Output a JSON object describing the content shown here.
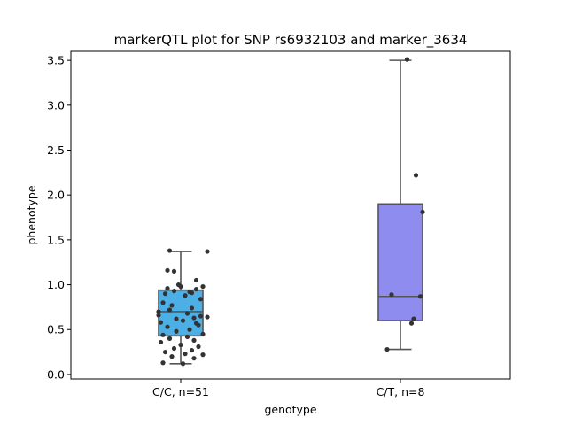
{
  "chart_data": {
    "type": "box",
    "title": "markerQTL plot for SNP rs6932103 and marker_3634",
    "xlabel": "genotype",
    "ylabel": "phenotype",
    "ylim": [
      -0.05,
      3.6
    ],
    "yticks": [
      "0.0",
      "0.5",
      "1.0",
      "1.5",
      "2.0",
      "2.5",
      "3.0",
      "3.5"
    ],
    "categories": [
      "C/C, n=51",
      "C/T, n=8"
    ],
    "boxes": [
      {
        "category": "C/C, n=51",
        "color": "#4cb0e6",
        "whisker_low": 0.12,
        "q1": 0.43,
        "median": 0.7,
        "q3": 0.94,
        "whisker_high": 1.37,
        "points": [
          [
            -0.08,
            0.8
          ],
          [
            -0.05,
            0.72
          ],
          [
            0.03,
            0.68
          ],
          [
            0.07,
            0.95
          ],
          [
            -0.03,
            0.93
          ],
          [
            0.0,
            0.98
          ],
          [
            0.05,
            0.91
          ],
          [
            -0.09,
            0.58
          ],
          [
            -0.02,
            0.62
          ],
          [
            0.06,
            0.63
          ],
          [
            -0.06,
            1.16
          ],
          [
            -0.03,
            1.15
          ],
          [
            0.07,
            1.05
          ],
          [
            0.12,
            1.37
          ],
          [
            -0.05,
            1.38
          ],
          [
            0.1,
            0.98
          ],
          [
            -0.07,
            0.9
          ],
          [
            0.02,
            0.88
          ],
          [
            0.09,
            0.84
          ],
          [
            -0.04,
            0.77
          ],
          [
            0.05,
            0.74
          ],
          [
            -0.1,
            0.66
          ],
          [
            0.01,
            0.6
          ],
          [
            0.08,
            0.55
          ],
          [
            -0.06,
            0.53
          ],
          [
            0.04,
            0.5
          ],
          [
            -0.02,
            0.48
          ],
          [
            0.1,
            0.45
          ],
          [
            -0.08,
            0.44
          ],
          [
            0.03,
            0.42
          ],
          [
            -0.05,
            0.4
          ],
          [
            0.06,
            0.38
          ],
          [
            -0.09,
            0.36
          ],
          [
            0.0,
            0.33
          ],
          [
            0.08,
            0.31
          ],
          [
            -0.03,
            0.29
          ],
          [
            0.05,
            0.27
          ],
          [
            -0.07,
            0.25
          ],
          [
            0.02,
            0.23
          ],
          [
            0.1,
            0.22
          ],
          [
            -0.04,
            0.2
          ],
          [
            0.06,
            0.18
          ],
          [
            -0.08,
            0.13
          ],
          [
            0.01,
            0.12
          ],
          [
            0.09,
            0.65
          ],
          [
            -0.01,
            1.0
          ],
          [
            0.04,
            0.92
          ],
          [
            -0.1,
            0.7
          ],
          [
            0.07,
            0.57
          ],
          [
            -0.06,
            0.96
          ],
          [
            0.12,
            0.64
          ]
        ]
      },
      {
        "category": "C/T, n=8",
        "color": "#8f8cf0",
        "whisker_low": 0.28,
        "q1": 0.6,
        "median": 0.87,
        "q3": 1.9,
        "whisker_high": 3.5,
        "points": [
          [
            -0.06,
            0.28
          ],
          [
            0.05,
            0.57
          ],
          [
            0.06,
            0.62
          ],
          [
            -0.04,
            0.89
          ],
          [
            0.09,
            0.87
          ],
          [
            0.1,
            1.81
          ],
          [
            0.07,
            2.22
          ],
          [
            0.03,
            3.51
          ]
        ]
      }
    ],
    "grid": false,
    "point_color": "#333333",
    "line_color": "#555555"
  }
}
